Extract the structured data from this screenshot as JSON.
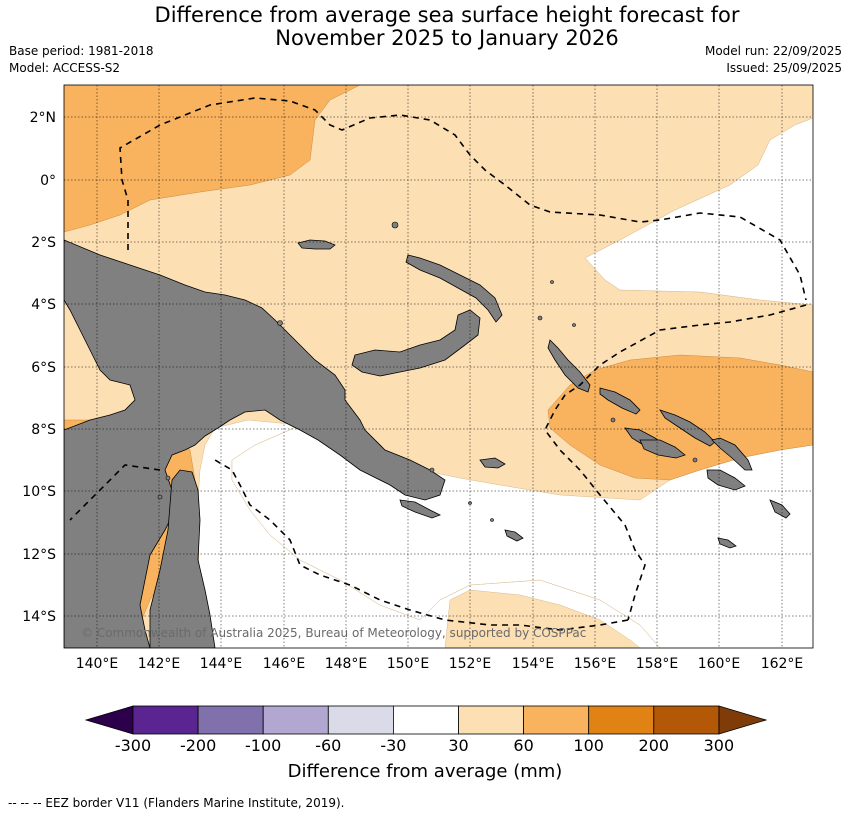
{
  "title_line1": "Difference from average sea surface height forecast for",
  "title_line2": "November 2025 to January 2026",
  "base_period": "Base period: 1981-2018",
  "model": "Model: ACCESS-S2",
  "model_run": "Model run: 22/09/2025",
  "issued": "Issued: 25/09/2025",
  "lat_labels": [
    "2°N",
    "0°",
    "2°S",
    "4°S",
    "6°S",
    "8°S",
    "10°S",
    "12°S",
    "14°S"
  ],
  "lon_labels": [
    "140°E",
    "142°E",
    "144°E",
    "146°E",
    "148°E",
    "150°E",
    "152°E",
    "154°E",
    "156°E",
    "158°E",
    "160°E",
    "162°E"
  ],
  "copyright": "© Commonwealth of Australia 2025, Bureau of Meteorology, supported by COSPPac",
  "colorbar": {
    "title": "Difference from average (mm)",
    "ticks": [
      "-300",
      "-200",
      "-100",
      "-60",
      "-30",
      "30",
      "60",
      "100",
      "200",
      "300"
    ],
    "colors": [
      "#5a2590",
      "#8071ad",
      "#b1a7d1",
      "#d9dbe9",
      "#ffffff",
      "#fddfb4",
      "#f9b35f",
      "#e08214",
      "#b35806"
    ],
    "under_color": "#2d004b",
    "over_color": "#7f3b08"
  },
  "map_colors": {
    "land": "#808080",
    "band_30_60": "#fddfb4",
    "band_60_100": "#f9b35f",
    "neutral": "#ffffff"
  },
  "footnote": "--  --  -- EEZ border V11 (Flanders Marine Institute, 2019)."
}
